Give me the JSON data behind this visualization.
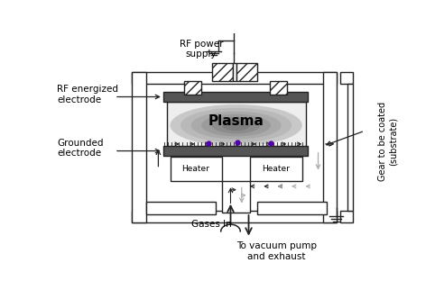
{
  "bg_color": "#ffffff",
  "plasma_text": "Plasma",
  "heater_text": "Heater",
  "labels": {
    "rf_power": "RF power\nsupply",
    "rf_electrode": "RF energized\nelectrode",
    "grounded": "Grounded\nelectrode",
    "gear": "Gear to be coated\n(substrate)",
    "gases_in": "Gases In",
    "vacuum": "To vacuum pump\nand exhaust"
  },
  "electrode_color": "#555555",
  "dot_color": "#5500aa",
  "gray": "#222222",
  "lgray": "#aaaaaa"
}
